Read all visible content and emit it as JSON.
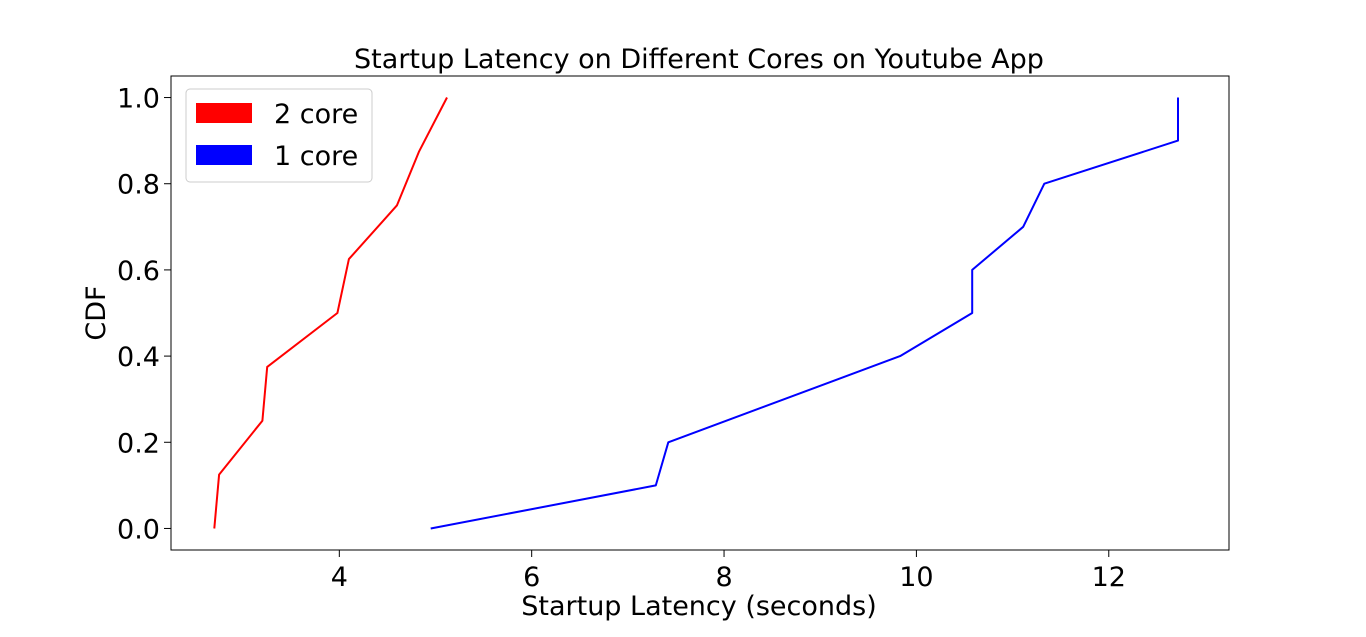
{
  "chart_data": {
    "type": "line",
    "title": "Startup Latency on Different Cores on Youtube App",
    "xlabel": "Startup Latency (seconds)",
    "ylabel": "CDF",
    "xlim": [
      2.25,
      13.25
    ],
    "ylim": [
      -0.05,
      1.05
    ],
    "x_ticks": [
      4,
      6,
      8,
      10,
      12
    ],
    "y_ticks": [
      0.0,
      0.2,
      0.4,
      0.6,
      0.8,
      1.0
    ],
    "x_tick_labels": [
      "4",
      "6",
      "8",
      "10",
      "12"
    ],
    "y_tick_labels": [
      "0.0",
      "0.2",
      "0.4",
      "0.6",
      "0.8",
      "1.0"
    ],
    "grid": false,
    "legend_position": "top-left",
    "series": [
      {
        "name": "2 core",
        "color": "#ff0000",
        "x": [
          2.7,
          2.75,
          3.2,
          3.25,
          3.98,
          4.1,
          4.6,
          4.83,
          5.12
        ],
        "y": [
          0.0,
          0.125,
          0.25,
          0.375,
          0.5,
          0.625,
          0.75,
          0.875,
          1.0
        ]
      },
      {
        "name": "1 core",
        "color": "#0000ff",
        "x": [
          4.95,
          7.29,
          7.42,
          9.83,
          10.58,
          10.58,
          11.11,
          11.33,
          12.72,
          12.72
        ],
        "y": [
          0.0,
          0.1,
          0.2,
          0.4,
          0.5,
          0.6,
          0.7,
          0.8,
          0.9,
          1.0
        ]
      }
    ]
  }
}
